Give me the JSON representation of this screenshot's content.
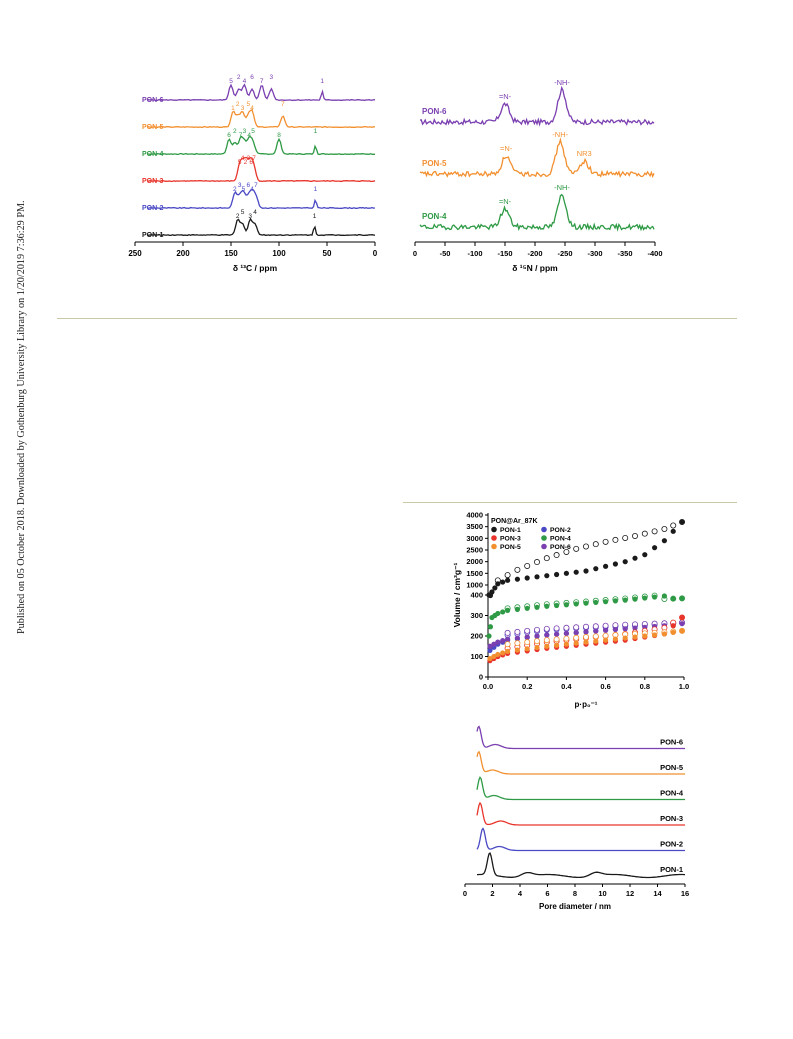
{
  "sidebar": {
    "published_note": "Published on 05 October 2018. Downloaded by Gothenburg University Library on 1/20/2019 7:36:29 PM."
  },
  "colors": {
    "PON-1": "#1a1a1a",
    "PON-2": "#4a49c4",
    "PON-3": "#e8342b",
    "PON-4": "#2e9a45",
    "PON-5": "#f29030",
    "PON-6": "#7a3fb0"
  },
  "chart_data": [
    {
      "type": "line",
      "id": "c13-nmr",
      "xlabel": "δ ¹³C / ppm",
      "xlim": [
        250,
        0
      ],
      "x_ticks": [
        "250",
        "200",
        "150",
        "100",
        "50",
        "0"
      ],
      "series": [
        {
          "name": "PON-6",
          "peaks_ppm": [
            150,
            142,
            136,
            128,
            118,
            108,
            55
          ],
          "peak_labels": [
            "5",
            "2",
            "4",
            "6",
            "7",
            "3",
            "1"
          ]
        },
        {
          "name": "PON-5",
          "peaks_ppm": [
            148,
            143,
            138,
            132,
            128,
            96
          ],
          "peak_labels": [
            "1",
            "2",
            "3",
            "5",
            "4",
            "7"
          ]
        },
        {
          "name": "PON-4",
          "peaks_ppm": [
            152,
            146,
            140,
            136,
            131,
            127,
            100,
            62
          ],
          "peak_labels": [
            "6",
            "2",
            "7",
            "3",
            "4",
            "5",
            "8",
            "1"
          ]
        },
        {
          "name": "PON-3",
          "peaks_ppm": [
            141,
            138,
            135,
            132,
            129,
            126
          ],
          "peak_labels": [
            "5",
            "4",
            "2",
            "3",
            "6",
            "7"
          ]
        },
        {
          "name": "PON-2",
          "peaks_ppm": [
            146,
            141,
            137,
            132,
            128,
            124,
            62
          ],
          "peak_labels": [
            "2",
            "3",
            "5",
            "6",
            "4",
            "7",
            "1"
          ]
        },
        {
          "name": "PON-1",
          "peaks_ppm": [
            143,
            138,
            130,
            125,
            63
          ],
          "peak_labels": [
            "2",
            "5",
            "3",
            "4",
            "1"
          ]
        }
      ]
    },
    {
      "type": "line",
      "id": "n15-nmr",
      "xlabel": "δ ¹⁵N / ppm",
      "xlim": [
        0,
        -400
      ],
      "x_ticks": [
        "0",
        "-50",
        "-100",
        "-150",
        "-200",
        "-250",
        "-300",
        "-350",
        "-400"
      ],
      "series": [
        {
          "name": "PON-6",
          "peaks_ppm": [
            -150,
            -245
          ],
          "peak_labels": [
            "=N-",
            "-NH-"
          ]
        },
        {
          "name": "PON-5",
          "peaks_ppm": [
            -152,
            -242,
            -282
          ],
          "peak_labels": [
            "=N-",
            "-NH-",
            "NR3"
          ]
        },
        {
          "name": "PON-4",
          "peaks_ppm": [
            -150,
            -245
          ],
          "peak_labels": [
            "=N-",
            "-NH-"
          ]
        }
      ]
    },
    {
      "type": "scatter",
      "id": "ar-isotherm",
      "title": "PON@Ar_87K",
      "xlabel": "p·p₀⁻¹",
      "ylabel": "Volume / cm³g⁻¹",
      "xlim": [
        0,
        1
      ],
      "x_ticks": [
        "0.0",
        "0.2",
        "0.4",
        "0.6",
        "0.8",
        "1.0"
      ],
      "y_ticks": [
        "0",
        "100",
        "200",
        "300",
        "400",
        "1000",
        "1500",
        "2000",
        "2500",
        "3000",
        "3500",
        "4000"
      ],
      "broken_y_axis": true,
      "legend": [
        "PON-1",
        "PON-2",
        "PON-3",
        "PON-4",
        "PON-5",
        "PON-6"
      ],
      "legend_location": "top-left",
      "series": [
        {
          "name": "PON-1",
          "adsorption": [
            [
              0.005,
              400
            ],
            [
              0.02,
              700
            ],
            [
              0.05,
              1050
            ],
            [
              0.1,
              1200
            ],
            [
              0.2,
              1300
            ],
            [
              0.3,
              1400
            ],
            [
              0.4,
              1500
            ],
            [
              0.5,
              1600
            ],
            [
              0.6,
              1800
            ],
            [
              0.7,
              2000
            ],
            [
              0.8,
              2300
            ],
            [
              0.9,
              2900
            ],
            [
              0.99,
              3700
            ]
          ],
          "desorption": [
            [
              0.05,
              1200
            ],
            [
              0.15,
              1650
            ],
            [
              0.3,
              2150
            ],
            [
              0.45,
              2550
            ],
            [
              0.6,
              2850
            ],
            [
              0.75,
              3100
            ],
            [
              0.9,
              3400
            ],
            [
              0.99,
              3700
            ]
          ]
        },
        {
          "name": "PON-4",
          "adsorption": [
            [
              0.005,
              200
            ],
            [
              0.02,
              290
            ],
            [
              0.05,
              310
            ],
            [
              0.1,
              325
            ],
            [
              0.3,
              345
            ],
            [
              0.5,
              360
            ],
            [
              0.7,
              375
            ],
            [
              0.9,
              395
            ],
            [
              0.99,
              425
            ]
          ],
          "desorption": [
            [
              0.1,
              335
            ],
            [
              0.3,
              355
            ],
            [
              0.5,
              368
            ],
            [
              0.7,
              383
            ],
            [
              0.9,
              402
            ],
            [
              0.99,
              425
            ]
          ]
        },
        {
          "name": "PON-2",
          "adsorption": [
            [
              0.01,
              130
            ],
            [
              0.05,
              160
            ],
            [
              0.1,
              180
            ],
            [
              0.3,
              205
            ],
            [
              0.5,
              220
            ],
            [
              0.7,
              240
            ],
            [
              0.9,
              255
            ],
            [
              0.99,
              265
            ]
          ],
          "desorption": [
            [
              0.1,
              205
            ],
            [
              0.3,
              230
            ],
            [
              0.5,
              240
            ],
            [
              0.7,
              250
            ],
            [
              0.9,
              260
            ],
            [
              0.99,
              265
            ]
          ]
        },
        {
          "name": "PON-6",
          "adsorption": [
            [
              0.01,
              150
            ],
            [
              0.05,
              170
            ],
            [
              0.1,
              185
            ],
            [
              0.3,
              205
            ],
            [
              0.5,
              220
            ],
            [
              0.7,
              235
            ],
            [
              0.9,
              250
            ],
            [
              0.99,
              260
            ]
          ],
          "desorption": [
            [
              0.1,
              215
            ],
            [
              0.3,
              235
            ],
            [
              0.5,
              245
            ],
            [
              0.7,
              255
            ],
            [
              0.9,
              262
            ],
            [
              0.99,
              265
            ]
          ]
        },
        {
          "name": "PON-3",
          "adsorption": [
            [
              0.01,
              80
            ],
            [
              0.05,
              100
            ],
            [
              0.1,
              115
            ],
            [
              0.3,
              140
            ],
            [
              0.5,
              160
            ],
            [
              0.7,
              180
            ],
            [
              0.9,
              210
            ],
            [
              0.99,
              290
            ]
          ],
          "desorption": [
            [
              0.1,
              140
            ],
            [
              0.3,
              170
            ],
            [
              0.5,
              190
            ],
            [
              0.7,
              210
            ],
            [
              0.9,
              240
            ],
            [
              0.99,
              290
            ]
          ]
        },
        {
          "name": "PON-5",
          "adsorption": [
            [
              0.01,
              90
            ],
            [
              0.05,
              110
            ],
            [
              0.1,
              125
            ],
            [
              0.3,
              150
            ],
            [
              0.5,
              170
            ],
            [
              0.7,
              190
            ],
            [
              0.9,
              210
            ],
            [
              0.99,
              225
            ]
          ],
          "desorption": [
            [
              0.1,
              160
            ],
            [
              0.3,
              180
            ],
            [
              0.5,
              195
            ],
            [
              0.7,
              208
            ],
            [
              0.9,
              218
            ],
            [
              0.99,
              225
            ]
          ]
        }
      ]
    },
    {
      "type": "line",
      "id": "pore-size",
      "xlabel": "Pore diameter / nm",
      "xlim": [
        0,
        16
      ],
      "x_ticks": [
        "0",
        "2",
        "4",
        "6",
        "8",
        "10",
        "12",
        "14",
        "16"
      ],
      "series": [
        {
          "name": "PON-6",
          "peaks_nm": [
            1.0,
            2.2
          ]
        },
        {
          "name": "PON-5",
          "peaks_nm": [
            1.0,
            2.0
          ]
        },
        {
          "name": "PON-4",
          "peaks_nm": [
            1.1,
            2.1
          ]
        },
        {
          "name": "PON-3",
          "peaks_nm": [
            1.1,
            2.6
          ]
        },
        {
          "name": "PON-2",
          "peaks_nm": [
            1.3,
            2.5
          ]
        },
        {
          "name": "PON-1",
          "peaks_nm": [
            1.8,
            4.5,
            9.5
          ]
        }
      ]
    }
  ]
}
